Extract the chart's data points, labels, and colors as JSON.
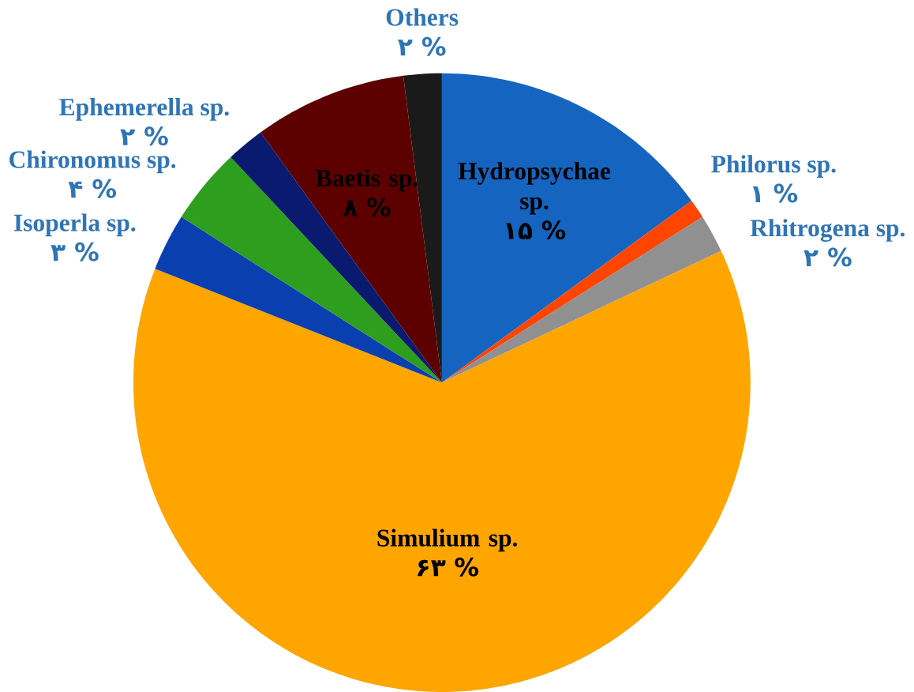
{
  "chart_data": {
    "type": "pie",
    "categories": [
      "Hydropsychae sp.",
      "Philorus sp.",
      "Rhitrogena sp.",
      "Simulium sp.",
      "Isoperla sp.",
      "Chironomus sp.",
      "Ephemerella sp.",
      "Baetis sp.",
      "Others"
    ],
    "values": [
      15,
      1,
      2,
      63,
      3,
      4,
      2,
      8,
      2
    ],
    "value_labels": [
      "۱۵ %",
      "۱ %",
      "۲ %",
      "۶۳ %",
      "۳ %",
      "۴ %",
      "۲ %",
      "۸ %",
      "۲ %"
    ],
    "colors": [
      "#1565c0",
      "#ff4500",
      "#909090",
      "#ffa500",
      "#0a3fb0",
      "#2e9e1e",
      "#0a1a6e",
      "#5c0000",
      "#1a1a1a"
    ]
  }
}
